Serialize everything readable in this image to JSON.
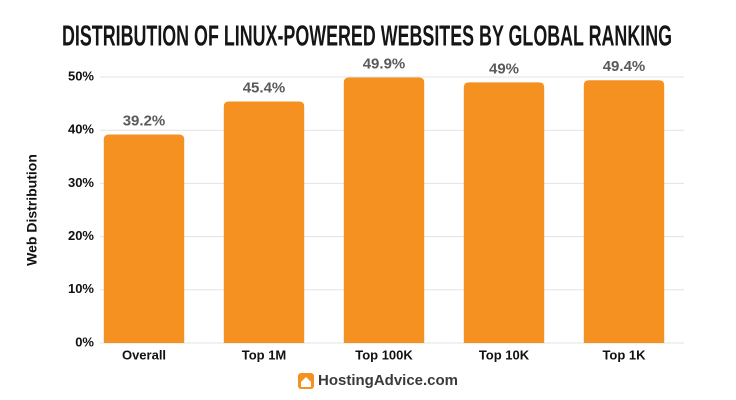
{
  "chart_data": {
    "type": "bar",
    "title": "DISTRIBUTION OF LINUX-POWERED WEBSITES BY GLOBAL RANKING",
    "y_label": "Web Distribution",
    "categories": [
      "Overall",
      "Top 1M",
      "Top 100K",
      "Top 10K",
      "Top 1K"
    ],
    "values": [
      39.2,
      45.4,
      49.9,
      49,
      49.4
    ],
    "value_labels": [
      "39.2%",
      "45.4%",
      "49.9%",
      "49%",
      "49.4%"
    ],
    "color": "#f49120",
    "ylim": [
      0,
      50
    ],
    "yticks": [
      {
        "value": 0,
        "label": "0%"
      },
      {
        "value": 10,
        "label": "10%"
      },
      {
        "value": 20,
        "label": "20%"
      },
      {
        "value": 30,
        "label": "30%"
      },
      {
        "value": 40,
        "label": "40%"
      },
      {
        "value": 50,
        "label": "50%"
      }
    ],
    "grid": true,
    "source": "HostingAdvice.com"
  }
}
